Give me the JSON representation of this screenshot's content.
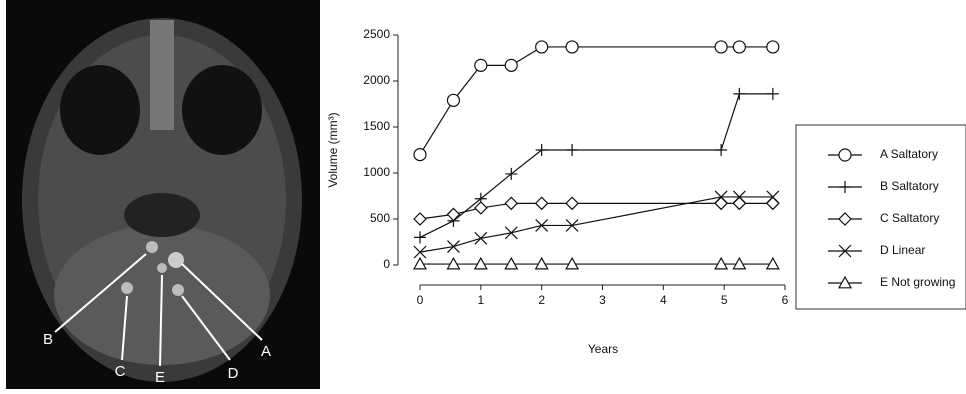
{
  "image": {
    "labels": [
      "A",
      "B",
      "C",
      "D",
      "E"
    ]
  },
  "chart_data": {
    "type": "line",
    "y_label": "Volume (mm³)",
    "x_label": "Years",
    "x": [
      0,
      0.55,
      1,
      1.5,
      2,
      2.5,
      4.95,
      5.25,
      5.8
    ],
    "series": [
      {
        "name": "A Saltatory",
        "color": "#111111",
        "marker": "circle",
        "values": [
          1200,
          1790,
          2170,
          2170,
          2370,
          2370,
          2370,
          2370,
          2370
        ]
      },
      {
        "name": "B Saltatory",
        "color": "#111111",
        "marker": "plus",
        "values": [
          300,
          480,
          720,
          990,
          1250,
          1250,
          1250,
          1860,
          1860
        ]
      },
      {
        "name": "C Saltatory",
        "color": "#111111",
        "marker": "diamond",
        "values": [
          500,
          550,
          620,
          670,
          670,
          670,
          670,
          670,
          670
        ]
      },
      {
        "name": "D Linear",
        "color": "#111111",
        "marker": "x",
        "values": [
          140,
          200,
          290,
          350,
          430,
          430,
          740,
          740,
          740
        ]
      },
      {
        "name": "E Not growing",
        "color": "#111111",
        "marker": "triangle",
        "values": [
          10,
          10,
          10,
          10,
          10,
          10,
          10,
          10,
          10
        ]
      }
    ],
    "xlim": [
      0,
      6
    ],
    "xticks": [
      0,
      1,
      2,
      3,
      4,
      5,
      6
    ],
    "ylim": [
      0,
      2500
    ],
    "yticks": [
      0,
      500,
      1000,
      1500,
      2000,
      2500
    ],
    "legend": "right"
  }
}
